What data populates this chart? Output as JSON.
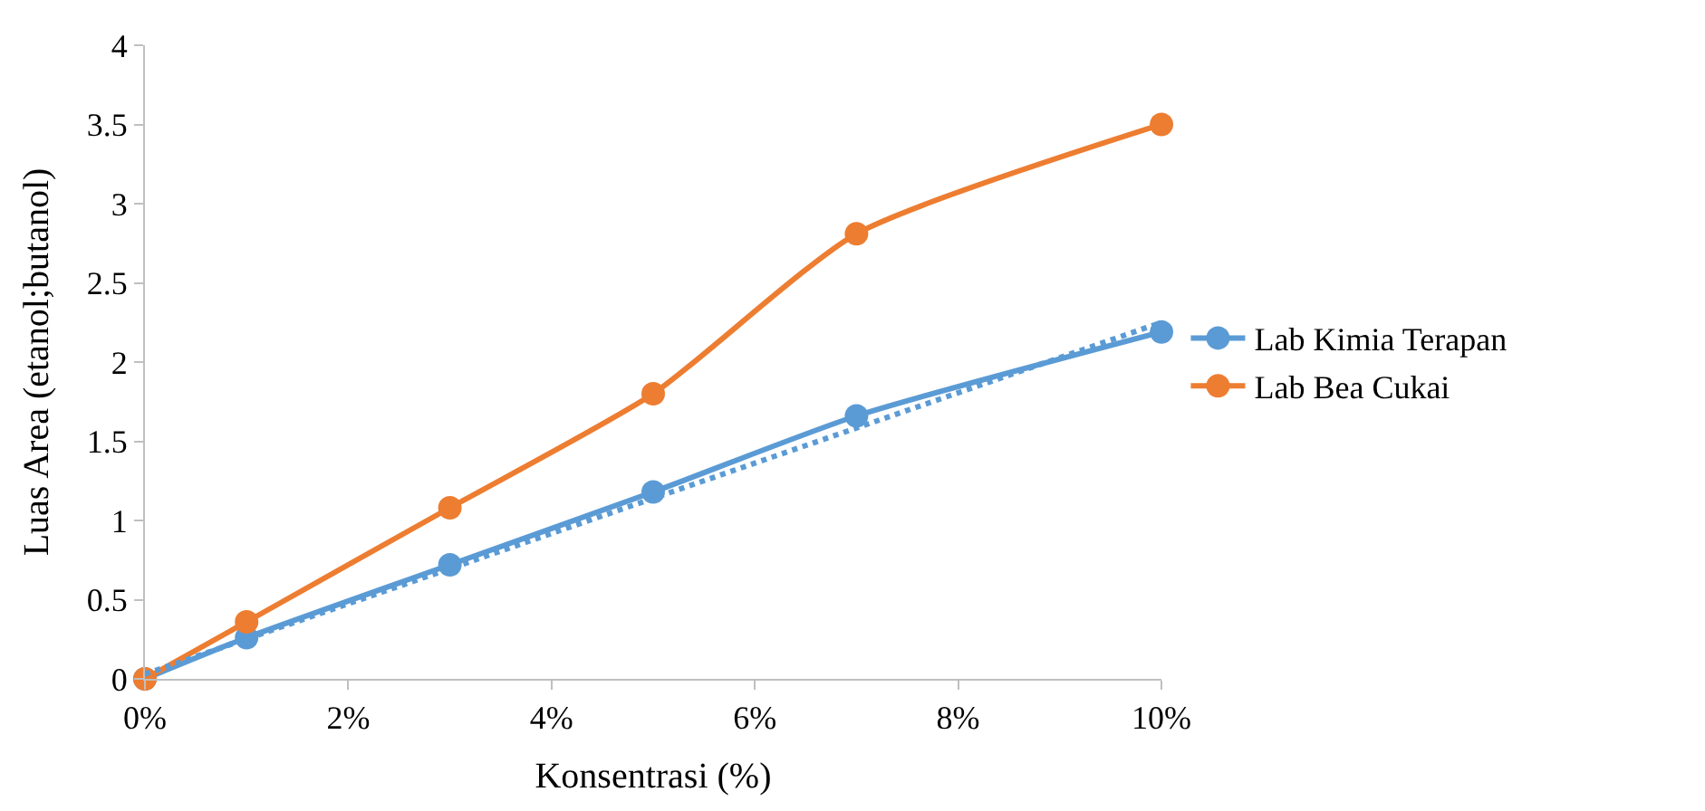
{
  "chart_data": {
    "type": "line",
    "xlabel": "Konsentrasi (%)",
    "ylabel": "Luas Area (etanol;butanol)",
    "x": [
      0,
      1,
      3,
      5,
      7,
      10
    ],
    "series": [
      {
        "name": "Lab Kimia Terapan",
        "color": "#5b9bd5",
        "values": [
          0,
          0.26,
          0.72,
          1.18,
          1.66,
          2.19
        ],
        "marker": "circle",
        "line_style": "solid"
      },
      {
        "name": "Lab Bea Cukai",
        "color": "#ed7d31",
        "values": [
          0,
          0.36,
          1.08,
          1.8,
          2.81,
          3.5
        ],
        "marker": "circle",
        "line_style": "solid"
      },
      {
        "color": "#5b9bd5",
        "x": [
          0,
          10
        ],
        "values": [
          0.03,
          2.25
        ],
        "marker": "none",
        "line_style": "dotted"
      }
    ],
    "xlim": [
      0,
      10
    ],
    "xticks": [
      {
        "value": 0,
        "label": "0%"
      },
      {
        "value": 2,
        "label": "2%"
      },
      {
        "value": 4,
        "label": "4%"
      },
      {
        "value": 6,
        "label": "6%"
      },
      {
        "value": 8,
        "label": "8%"
      },
      {
        "value": 10,
        "label": "10%"
      }
    ],
    "ylim": [
      0,
      4
    ],
    "yticks": [
      0,
      0.5,
      1,
      1.5,
      2,
      2.5,
      3,
      3.5,
      4
    ],
    "legend": "right"
  }
}
